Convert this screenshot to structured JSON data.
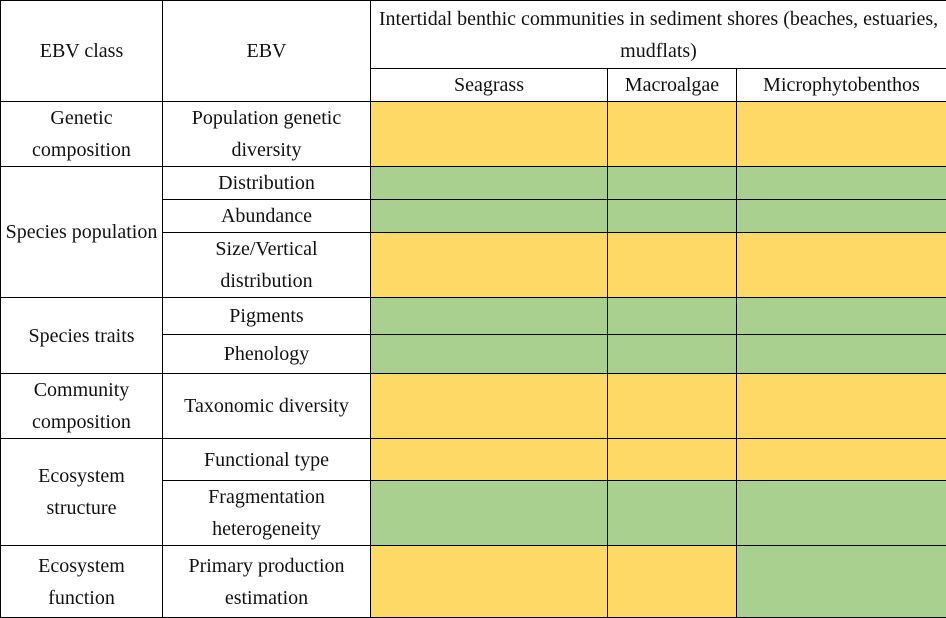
{
  "header": {
    "ebv_class": "EBV class",
    "ebv": "EBV",
    "habitat": "Intertidal benthic communities in sediment shores (beaches, estuaries, mudflats)"
  },
  "columns": [
    "Seagrass",
    "Macroalgae",
    "Microphytobenthos"
  ],
  "colors": {
    "yellow": "#ffd966",
    "green": "#a9d08e"
  },
  "groups": [
    {
      "ebv_class": "Genetic composition",
      "rows": [
        {
          "ebv": "Population genetic diversity",
          "cells": [
            "yellow",
            "yellow",
            "yellow"
          ]
        }
      ]
    },
    {
      "ebv_class": "Species population",
      "rows": [
        {
          "ebv": "Distribution",
          "cells": [
            "green",
            "green",
            "green"
          ]
        },
        {
          "ebv": "Abundance",
          "cells": [
            "green",
            "green",
            "green"
          ]
        },
        {
          "ebv": "Size/Vertical distribution",
          "cells": [
            "yellow",
            "yellow",
            "yellow"
          ]
        }
      ]
    },
    {
      "ebv_class": "Species traits",
      "rows": [
        {
          "ebv": "Pigments",
          "cells": [
            "green",
            "green",
            "green"
          ]
        },
        {
          "ebv": "Phenology",
          "cells": [
            "green",
            "green",
            "green"
          ]
        }
      ]
    },
    {
      "ebv_class": "Community composition",
      "rows": [
        {
          "ebv": "Taxonomic diversity",
          "cells": [
            "yellow",
            "yellow",
            "yellow"
          ]
        }
      ]
    },
    {
      "ebv_class": "Ecosystem structure",
      "rows": [
        {
          "ebv": "Functional type",
          "cells": [
            "yellow",
            "yellow",
            "yellow"
          ]
        },
        {
          "ebv": "Fragmentation heterogeneity",
          "cells": [
            "green",
            "green",
            "green"
          ]
        }
      ]
    },
    {
      "ebv_class": "Ecosystem function",
      "rows": [
        {
          "ebv": "Primary production estimation",
          "cells": [
            "yellow",
            "yellow",
            "green"
          ]
        }
      ]
    }
  ]
}
